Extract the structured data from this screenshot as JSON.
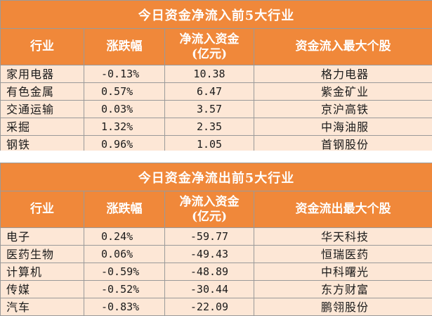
{
  "inflow": {
    "title": "今日资金净流入前5大行业",
    "headers": {
      "industry": "行业",
      "change": "涨跌幅",
      "amount_line1": "净流入资金",
      "amount_line2": "(亿元)",
      "stock": "资金流入最大个股"
    },
    "rows": [
      {
        "industry": "家用电器",
        "change": "-0.13%",
        "amount": "10.38",
        "stock": "格力电器"
      },
      {
        "industry": "有色金属",
        "change": "0.57%",
        "amount": "6.47",
        "stock": "紫金矿业"
      },
      {
        "industry": "交通运输",
        "change": "0.03%",
        "amount": "3.57",
        "stock": "京沪高铁"
      },
      {
        "industry": "采掘",
        "change": "1.32%",
        "amount": "2.35",
        "stock": "中海油服"
      },
      {
        "industry": "钢铁",
        "change": "0.96%",
        "amount": "1.05",
        "stock": "首钢股份"
      }
    ]
  },
  "outflow": {
    "title": "今日资金净流出前5大行业",
    "headers": {
      "industry": "行业",
      "change": "涨跌幅",
      "amount_line1": "净流入资金",
      "amount_line2": "(亿元)",
      "stock": "资金流出最大个股"
    },
    "rows": [
      {
        "industry": "电子",
        "change": "0.24%",
        "amount": "-59.77",
        "stock": "华天科技"
      },
      {
        "industry": "医药生物",
        "change": "0.06%",
        "amount": "-49.43",
        "stock": "恒瑞医药"
      },
      {
        "industry": "计算机",
        "change": "-0.59%",
        "amount": "-48.89",
        "stock": "中科曙光"
      },
      {
        "industry": "传媒",
        "change": "-0.52%",
        "amount": "-30.44",
        "stock": "东方财富"
      },
      {
        "industry": "汽车",
        "change": "-0.83%",
        "amount": "-22.09",
        "stock": "鹏翎股份"
      }
    ]
  },
  "colors": {
    "header_bg": "#f0883a",
    "row_bg": "#fde7d6",
    "border": "#9a9a9a"
  }
}
